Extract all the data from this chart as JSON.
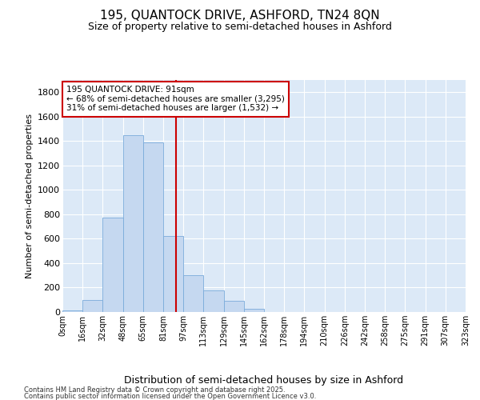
{
  "title": "195, QUANTOCK DRIVE, ASHFORD, TN24 8QN",
  "subtitle": "Size of property relative to semi-detached houses in Ashford",
  "xlabel": "Distribution of semi-detached houses by size in Ashford",
  "ylabel": "Number of semi-detached properties",
  "bin_labels": [
    "0sqm",
    "16sqm",
    "32sqm",
    "48sqm",
    "65sqm",
    "81sqm",
    "97sqm",
    "113sqm",
    "129sqm",
    "145sqm",
    "162sqm",
    "178sqm",
    "194sqm",
    "210sqm",
    "226sqm",
    "242sqm",
    "258sqm",
    "275sqm",
    "291sqm",
    "307sqm",
    "323sqm"
  ],
  "bar_values": [
    10,
    100,
    775,
    1450,
    1390,
    620,
    300,
    175,
    90,
    25,
    0,
    0,
    0,
    0,
    0,
    0,
    0,
    0,
    0,
    0
  ],
  "bar_color": "#c5d8f0",
  "bar_edge_color": "#7aabdb",
  "line_color": "#cc0000",
  "ylim": [
    0,
    1900
  ],
  "yticks": [
    0,
    200,
    400,
    600,
    800,
    1000,
    1200,
    1400,
    1600,
    1800
  ],
  "annotation_line1": "195 QUANTOCK DRIVE: 91sqm",
  "annotation_line2": "← 68% of semi-detached houses are smaller (3,295)",
  "annotation_line3": "31% of semi-detached houses are larger (1,532) →",
  "footer_line1": "Contains HM Land Registry data © Crown copyright and database right 2025.",
  "footer_line2": "Contains public sector information licensed under the Open Government Licence v3.0.",
  "fig_bg_color": "#ffffff",
  "plot_bg_color": "#dce9f7"
}
